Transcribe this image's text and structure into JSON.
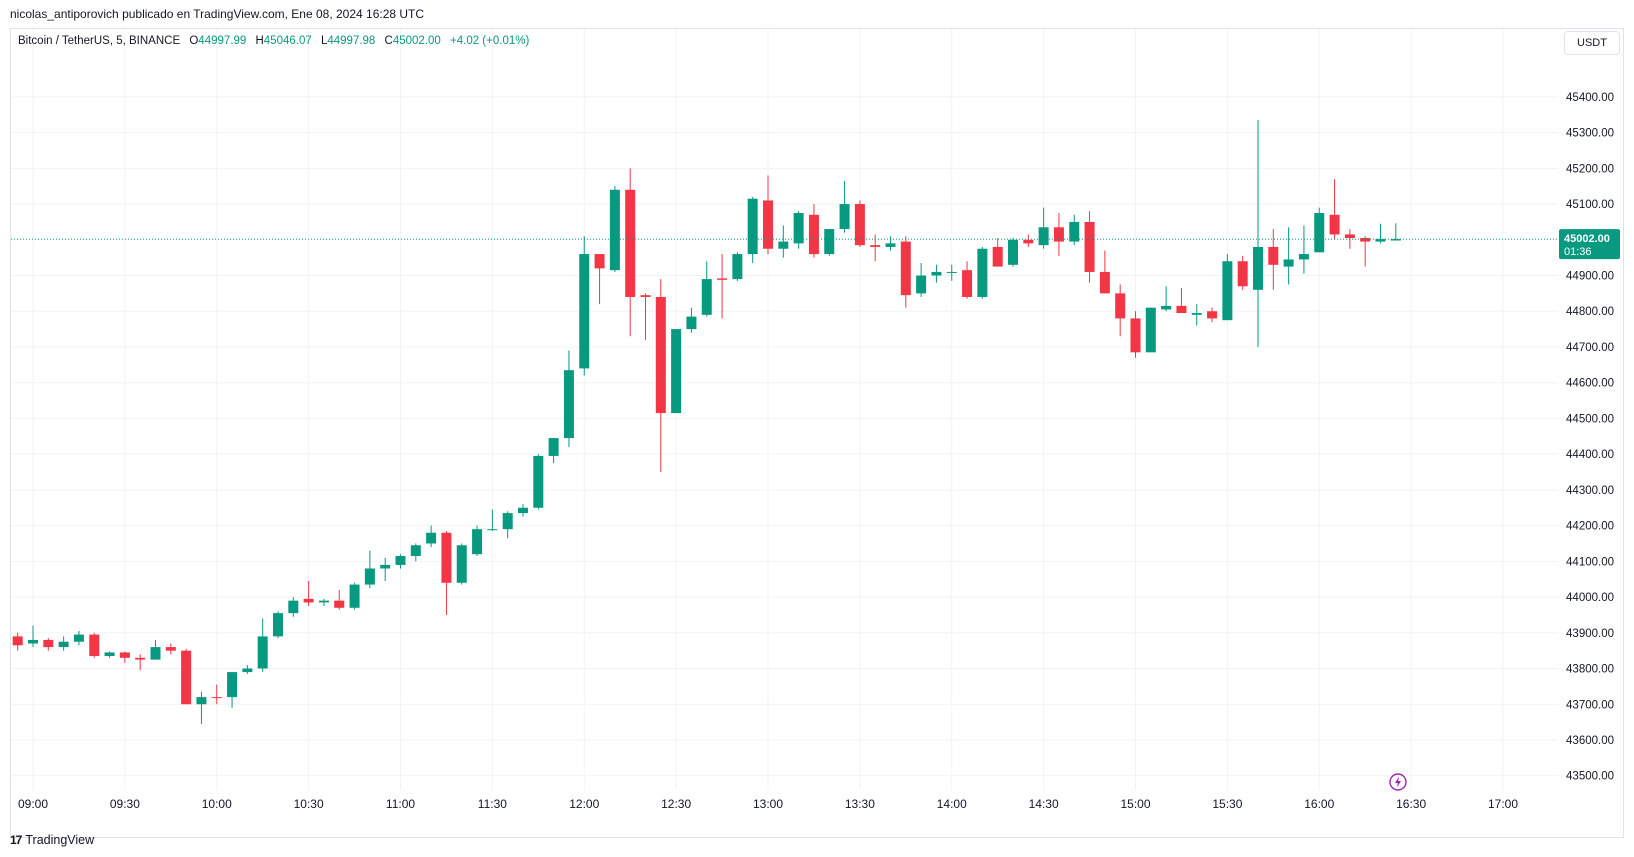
{
  "header": {
    "publisher_text": "nicolas_antiporovich publicado en TradingView.com, Ene 08, 2024 16:28 UTC"
  },
  "legend": {
    "symbol": "Bitcoin / TetherUS, 5, BINANCE",
    "open_label": "O",
    "open": "44997.99",
    "high_label": "H",
    "high": "45046.07",
    "low_label": "L",
    "low": "44997.98",
    "close_label": "C",
    "close": "45002.00",
    "change": "+4.02 (+0.01%)"
  },
  "currency_button": "USDT",
  "price_tag": {
    "price": "45002.00",
    "countdown": "01:36"
  },
  "footer": {
    "brand_logo": "17",
    "brand": "TradingView"
  },
  "icons": {
    "brand": "tradingview-logo-icon",
    "bolt": "lightning-bolt-icon"
  },
  "colors": {
    "up": "#089981",
    "down": "#f23645",
    "grid": "#f0f3fa",
    "price_line": "#089981",
    "bolt": "#9c27b0"
  },
  "chart_data": {
    "type": "candlestick",
    "interval_minutes": 5,
    "y_ticks": [
      "45400.00",
      "45300.00",
      "45200.00",
      "45100.00",
      "45000.00",
      "44900.00",
      "44800.00",
      "44700.00",
      "44600.00",
      "44500.00",
      "44400.00",
      "44300.00",
      "44200.00",
      "44100.00",
      "44000.00",
      "43900.00",
      "43800.00",
      "43700.00",
      "43600.00",
      "43500.00"
    ],
    "ylim": [
      43460,
      45590
    ],
    "x_ticks": [
      {
        "label": "09:00",
        "time": "09:00"
      },
      {
        "label": "09:30",
        "time": "09:30"
      },
      {
        "label": "10:00",
        "time": "10:00"
      },
      {
        "label": "10:30",
        "time": "10:30"
      },
      {
        "label": "11:00",
        "time": "11:00"
      },
      {
        "label": "11:30",
        "time": "11:30"
      },
      {
        "label": "12:00",
        "time": "12:00"
      },
      {
        "label": "12:30",
        "time": "12:30"
      },
      {
        "label": "13:00",
        "time": "13:00"
      },
      {
        "label": "13:30",
        "time": "13:30"
      },
      {
        "label": "14:00",
        "time": "14:00"
      },
      {
        "label": "14:30",
        "time": "14:30"
      },
      {
        "label": "15:00",
        "time": "15:00"
      },
      {
        "label": "15:30",
        "time": "15:30"
      },
      {
        "label": "16:00",
        "time": "16:00"
      },
      {
        "label": "16:30",
        "time": "16:30"
      },
      {
        "label": "17:00",
        "time": "17:00"
      }
    ],
    "candles": [
      {
        "t": "08:55",
        "o": 43890,
        "h": 43900,
        "l": 43850,
        "c": 43865
      },
      {
        "t": "09:00",
        "o": 43870,
        "h": 43920,
        "l": 43860,
        "c": 43880
      },
      {
        "t": "09:05",
        "o": 43880,
        "h": 43885,
        "l": 43850,
        "c": 43860
      },
      {
        "t": "09:10",
        "o": 43860,
        "h": 43890,
        "l": 43850,
        "c": 43875
      },
      {
        "t": "09:15",
        "o": 43875,
        "h": 43905,
        "l": 43865,
        "c": 43895
      },
      {
        "t": "09:20",
        "o": 43895,
        "h": 43900,
        "l": 43830,
        "c": 43835
      },
      {
        "t": "09:25",
        "o": 43835,
        "h": 43848,
        "l": 43830,
        "c": 43845
      },
      {
        "t": "09:30",
        "o": 43845,
        "h": 43848,
        "l": 43815,
        "c": 43830
      },
      {
        "t": "09:35",
        "o": 43830,
        "h": 43840,
        "l": 43795,
        "c": 43825
      },
      {
        "t": "09:40",
        "o": 43825,
        "h": 43880,
        "l": 43825,
        "c": 43860
      },
      {
        "t": "09:45",
        "o": 43860,
        "h": 43870,
        "l": 43840,
        "c": 43850
      },
      {
        "t": "09:50",
        "o": 43850,
        "h": 43855,
        "l": 43700,
        "c": 43700
      },
      {
        "t": "09:55",
        "o": 43700,
        "h": 43735,
        "l": 43645,
        "c": 43720
      },
      {
        "t": "10:00",
        "o": 43720,
        "h": 43755,
        "l": 43700,
        "c": 43718
      },
      {
        "t": "10:05",
        "o": 43720,
        "h": 43790,
        "l": 43690,
        "c": 43790
      },
      {
        "t": "10:10",
        "o": 43790,
        "h": 43810,
        "l": 43785,
        "c": 43800
      },
      {
        "t": "10:15",
        "o": 43800,
        "h": 43940,
        "l": 43790,
        "c": 43890
      },
      {
        "t": "10:20",
        "o": 43890,
        "h": 43960,
        "l": 43885,
        "c": 43955
      },
      {
        "t": "10:25",
        "o": 43955,
        "h": 44000,
        "l": 43945,
        "c": 43990
      },
      {
        "t": "10:30",
        "o": 43995,
        "h": 44045,
        "l": 43975,
        "c": 43985
      },
      {
        "t": "10:35",
        "o": 43985,
        "h": 43995,
        "l": 43975,
        "c": 43990
      },
      {
        "t": "10:40",
        "o": 43990,
        "h": 44020,
        "l": 43965,
        "c": 43970
      },
      {
        "t": "10:45",
        "o": 43970,
        "h": 44040,
        "l": 43965,
        "c": 44035
      },
      {
        "t": "10:50",
        "o": 44035,
        "h": 44130,
        "l": 44025,
        "c": 44080
      },
      {
        "t": "10:55",
        "o": 44080,
        "h": 44110,
        "l": 44045,
        "c": 44090
      },
      {
        "t": "11:00",
        "o": 44090,
        "h": 44120,
        "l": 44080,
        "c": 44115
      },
      {
        "t": "11:05",
        "o": 44115,
        "h": 44150,
        "l": 44100,
        "c": 44145
      },
      {
        "t": "11:10",
        "o": 44150,
        "h": 44200,
        "l": 44140,
        "c": 44180
      },
      {
        "t": "11:15",
        "o": 44180,
        "h": 44185,
        "l": 43950,
        "c": 44040
      },
      {
        "t": "11:20",
        "o": 44040,
        "h": 44150,
        "l": 44035,
        "c": 44145
      },
      {
        "t": "11:25",
        "o": 44120,
        "h": 44200,
        "l": 44115,
        "c": 44190
      },
      {
        "t": "11:30",
        "o": 44190,
        "h": 44245,
        "l": 44185,
        "c": 44190
      },
      {
        "t": "11:35",
        "o": 44190,
        "h": 44240,
        "l": 44165,
        "c": 44235
      },
      {
        "t": "11:40",
        "o": 44235,
        "h": 44260,
        "l": 44225,
        "c": 44250
      },
      {
        "t": "11:45",
        "o": 44250,
        "h": 44400,
        "l": 44245,
        "c": 44395
      },
      {
        "t": "11:50",
        "o": 44395,
        "h": 44445,
        "l": 44375,
        "c": 44445
      },
      {
        "t": "11:55",
        "o": 44445,
        "h": 44690,
        "l": 44420,
        "c": 44635
      },
      {
        "t": "12:00",
        "o": 44640,
        "h": 45010,
        "l": 44620,
        "c": 44960
      },
      {
        "t": "12:05",
        "o": 44960,
        "h": 44955,
        "l": 44820,
        "c": 44920
      },
      {
        "t": "12:10",
        "o": 44915,
        "h": 45150,
        "l": 44910,
        "c": 45140
      },
      {
        "t": "12:15",
        "o": 45140,
        "h": 45200,
        "l": 44730,
        "c": 44840
      },
      {
        "t": "12:20",
        "o": 44845,
        "h": 44850,
        "l": 44720,
        "c": 44840
      },
      {
        "t": "12:25",
        "o": 44840,
        "h": 44890,
        "l": 44350,
        "c": 44515
      },
      {
        "t": "12:30",
        "o": 44515,
        "h": 44750,
        "l": 44515,
        "c": 44750
      },
      {
        "t": "12:35",
        "o": 44750,
        "h": 44810,
        "l": 44740,
        "c": 44785
      },
      {
        "t": "12:40",
        "o": 44790,
        "h": 44940,
        "l": 44785,
        "c": 44890
      },
      {
        "t": "12:45",
        "o": 44892,
        "h": 44960,
        "l": 44780,
        "c": 44888
      },
      {
        "t": "12:50",
        "o": 44890,
        "h": 44965,
        "l": 44885,
        "c": 44960
      },
      {
        "t": "12:55",
        "o": 44960,
        "h": 45120,
        "l": 44935,
        "c": 45115
      },
      {
        "t": "13:00",
        "o": 45110,
        "h": 45180,
        "l": 44960,
        "c": 44975
      },
      {
        "t": "13:05",
        "o": 44975,
        "h": 45040,
        "l": 44950,
        "c": 44995
      },
      {
        "t": "13:10",
        "o": 44990,
        "h": 45080,
        "l": 44975,
        "c": 45075
      },
      {
        "t": "13:15",
        "o": 45070,
        "h": 45100,
        "l": 44950,
        "c": 44960
      },
      {
        "t": "13:20",
        "o": 44960,
        "h": 45030,
        "l": 44955,
        "c": 45030
      },
      {
        "t": "13:25",
        "o": 45030,
        "h": 45165,
        "l": 45020,
        "c": 45100
      },
      {
        "t": "13:30",
        "o": 45100,
        "h": 45110,
        "l": 44980,
        "c": 44985
      },
      {
        "t": "13:35",
        "o": 44985,
        "h": 45015,
        "l": 44940,
        "c": 44980
      },
      {
        "t": "13:40",
        "o": 44980,
        "h": 45010,
        "l": 44970,
        "c": 44990
      },
      {
        "t": "13:45",
        "o": 44995,
        "h": 45010,
        "l": 44810,
        "c": 44845
      },
      {
        "t": "13:50",
        "o": 44850,
        "h": 44935,
        "l": 44840,
        "c": 44900
      },
      {
        "t": "13:55",
        "o": 44900,
        "h": 44930,
        "l": 44880,
        "c": 44910
      },
      {
        "t": "14:00",
        "o": 44910,
        "h": 44930,
        "l": 44885,
        "c": 44910
      },
      {
        "t": "14:05",
        "o": 44915,
        "h": 44940,
        "l": 44835,
        "c": 44840
      },
      {
        "t": "14:10",
        "o": 44840,
        "h": 44980,
        "l": 44835,
        "c": 44975
      },
      {
        "t": "14:15",
        "o": 44980,
        "h": 45005,
        "l": 44930,
        "c": 44925
      },
      {
        "t": "14:20",
        "o": 44930,
        "h": 45005,
        "l": 44925,
        "c": 45000
      },
      {
        "t": "14:25",
        "o": 45000,
        "h": 45015,
        "l": 44980,
        "c": 44990
      },
      {
        "t": "14:30",
        "o": 44985,
        "h": 45090,
        "l": 44975,
        "c": 45035
      },
      {
        "t": "14:35",
        "o": 45035,
        "h": 45075,
        "l": 44955,
        "c": 44995
      },
      {
        "t": "14:40",
        "o": 44995,
        "h": 45070,
        "l": 44985,
        "c": 45050
      },
      {
        "t": "14:45",
        "o": 45050,
        "h": 45080,
        "l": 44880,
        "c": 44910
      },
      {
        "t": "14:50",
        "o": 44910,
        "h": 44970,
        "l": 44850,
        "c": 44850
      },
      {
        "t": "14:55",
        "o": 44850,
        "h": 44875,
        "l": 44730,
        "c": 44780
      },
      {
        "t": "15:00",
        "o": 44780,
        "h": 44800,
        "l": 44670,
        "c": 44685
      },
      {
        "t": "15:05",
        "o": 44685,
        "h": 44810,
        "l": 44690,
        "c": 44810
      },
      {
        "t": "15:10",
        "o": 44805,
        "h": 44870,
        "l": 44800,
        "c": 44815
      },
      {
        "t": "15:15",
        "o": 44815,
        "h": 44865,
        "l": 44795,
        "c": 44795
      },
      {
        "t": "15:20",
        "o": 44790,
        "h": 44820,
        "l": 44760,
        "c": 44795
      },
      {
        "t": "15:25",
        "o": 44800,
        "h": 44810,
        "l": 44770,
        "c": 44780
      },
      {
        "t": "15:30",
        "o": 44775,
        "h": 44960,
        "l": 44775,
        "c": 44940
      },
      {
        "t": "15:35",
        "o": 44940,
        "h": 44955,
        "l": 44860,
        "c": 44870
      },
      {
        "t": "15:40",
        "o": 44860,
        "h": 45335,
        "l": 44700,
        "c": 44980
      },
      {
        "t": "15:45",
        "o": 44980,
        "h": 45030,
        "l": 44860,
        "c": 44930
      },
      {
        "t": "15:50",
        "o": 44925,
        "h": 45035,
        "l": 44875,
        "c": 44945
      },
      {
        "t": "15:55",
        "o": 44945,
        "h": 45040,
        "l": 44905,
        "c": 44960
      },
      {
        "t": "16:00",
        "o": 44965,
        "h": 45090,
        "l": 44965,
        "c": 45075
      },
      {
        "t": "16:05",
        "o": 45070,
        "h": 45170,
        "l": 45000,
        "c": 45015
      },
      {
        "t": "16:10",
        "o": 45015,
        "h": 45030,
        "l": 44975,
        "c": 45005
      },
      {
        "t": "16:15",
        "o": 45005,
        "h": 45010,
        "l": 44925,
        "c": 44995
      },
      {
        "t": "16:20",
        "o": 44995,
        "h": 45045,
        "l": 44990,
        "c": 45002
      },
      {
        "t": "16:25",
        "o": 44997.99,
        "h": 45046.07,
        "l": 44997.98,
        "c": 45002.0
      }
    ]
  }
}
